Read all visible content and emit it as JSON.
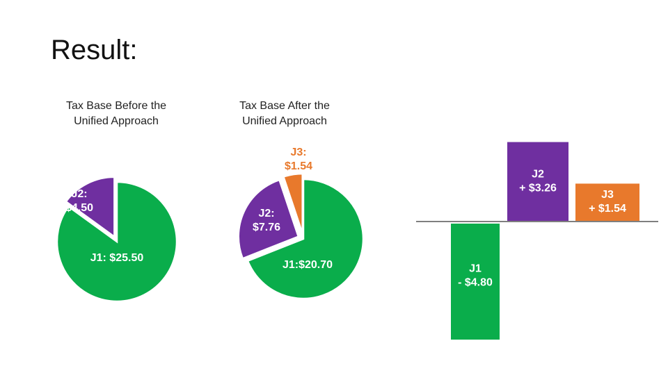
{
  "slide": {
    "title": "Result:"
  },
  "colors": {
    "J1": "#0aad4b",
    "J2": "#6f2fa0",
    "J3": "#e8792c",
    "axis": "#555555",
    "label_on_fill": "#ffffff"
  },
  "chart_data": [
    {
      "type": "pie",
      "title_lines": [
        "Tax Base Before the",
        "Unified Approach"
      ],
      "slices": [
        {
          "name": "J1",
          "label": "J1: $25.50",
          "value": 25.5,
          "color": "#0aad4b"
        },
        {
          "name": "J2",
          "label_lines": [
            "J2:",
            "$4.50"
          ],
          "value": 4.5,
          "color": "#6f2fa0",
          "exploded": true
        }
      ]
    },
    {
      "type": "pie",
      "title_lines": [
        "Tax Base After the",
        "Unified Approach"
      ],
      "slices": [
        {
          "name": "J1",
          "label": "J1:$20.70",
          "value": 20.7,
          "color": "#0aad4b"
        },
        {
          "name": "J2",
          "label_lines": [
            "J2:",
            "$7.76"
          ],
          "value": 7.76,
          "color": "#6f2fa0",
          "exploded": true
        },
        {
          "name": "J3",
          "label_lines": [
            "J3:",
            "$1.54"
          ],
          "value": 1.54,
          "color": "#e8792c",
          "exploded": true,
          "label_outside": true
        }
      ]
    },
    {
      "type": "bar",
      "subtype": "change",
      "categories": [
        "J1",
        "J2",
        "J3"
      ],
      "values": [
        -4.8,
        3.26,
        1.54
      ],
      "labels": [
        [
          "J1",
          "- $4.80"
        ],
        [
          "J2",
          "+ $3.26"
        ],
        [
          "J3",
          "+ $1.54"
        ]
      ],
      "colors": [
        "#0aad4b",
        "#6f2fa0",
        "#e8792c"
      ],
      "ylim": [
        -5.0,
        3.6
      ]
    }
  ]
}
